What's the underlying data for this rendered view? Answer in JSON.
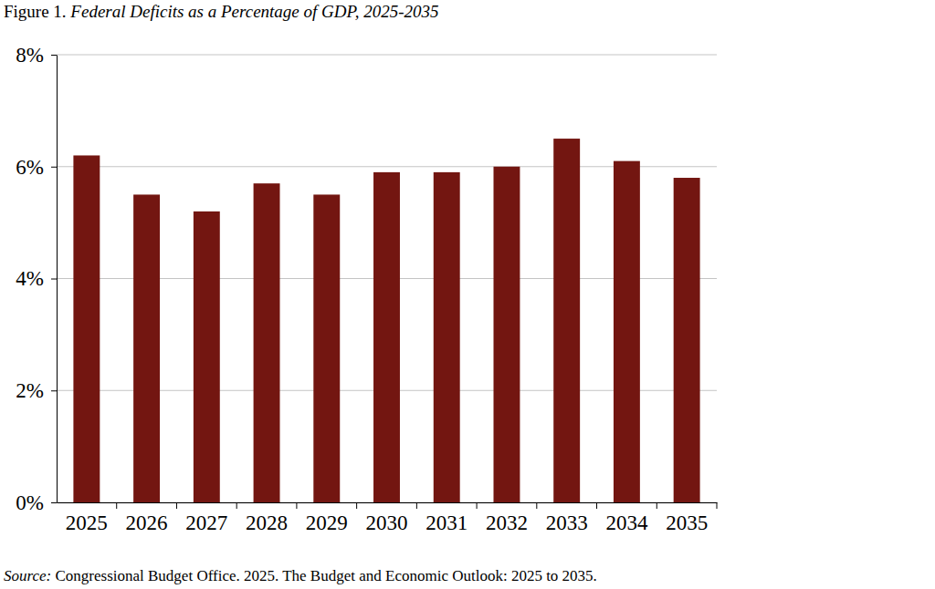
{
  "chart_data": {
    "type": "bar",
    "title": "Figure 1. Federal Deficits as a Percentage of GDP, 2025-2035",
    "categories": [
      "2025",
      "2026",
      "2027",
      "2028",
      "2029",
      "2030",
      "2031",
      "2032",
      "2033",
      "2034",
      "2035"
    ],
    "values": [
      6.2,
      5.5,
      5.2,
      5.7,
      5.5,
      5.9,
      5.9,
      6.0,
      6.5,
      6.1,
      5.8
    ],
    "color": "#731611",
    "ylim": [
      0,
      8
    ],
    "yticks": [
      {
        "value": 0,
        "label": "0%"
      },
      {
        "value": 2,
        "label": "2%"
      },
      {
        "value": 4,
        "label": "4%"
      },
      {
        "value": 6,
        "label": "6%"
      },
      {
        "value": 8,
        "label": "8%"
      }
    ],
    "grid": true,
    "annotations": [
      "Source: Congressional Budget Office. 2025. The Budget and Economic Outlook: 2025 to 2035."
    ]
  }
}
